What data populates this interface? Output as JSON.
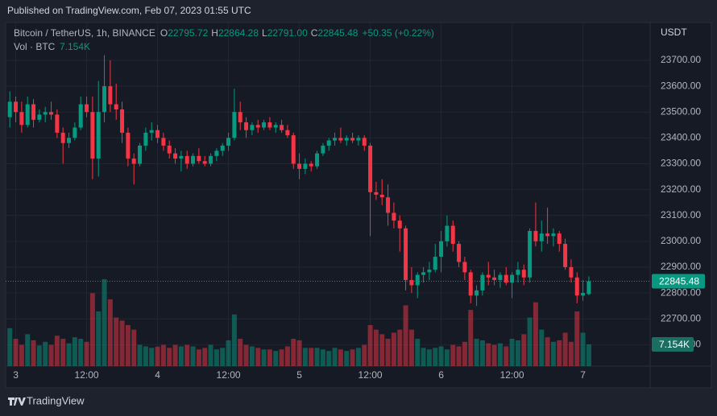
{
  "page": {
    "published": "Published on TradingView.com, Feb 07, 2023 01:55 UTC",
    "footer": "TradingView"
  },
  "chart_data": {
    "type": "candlestick",
    "symbol": "Bitcoin / TetherUS, 1h, BINANCE",
    "ohlc_names": [
      "O",
      "H",
      "L",
      "C"
    ],
    "ohlc_labels": [
      "22795.72",
      "22864.28",
      "22791.00",
      "22845.48"
    ],
    "change": "+50.35 (+0.22%)",
    "volume_title": "Vol · BTC",
    "volume_label": "7.154K",
    "currency": "USDT",
    "up_color": "#089981",
    "down_color": "#f23645",
    "grid": true,
    "ylim": [
      22517,
      23840
    ],
    "yticks": [
      {
        "value": 23700,
        "label": "23700.00"
      },
      {
        "value": 23600,
        "label": "23600.00"
      },
      {
        "value": 23500,
        "label": "23500.00"
      },
      {
        "value": 23400,
        "label": "23400.00"
      },
      {
        "value": 23300,
        "label": "23300.00"
      },
      {
        "value": 23200,
        "label": "23200.00"
      },
      {
        "value": 23100,
        "label": "23100.00"
      },
      {
        "value": 23000,
        "label": "23000.00"
      },
      {
        "value": 22900,
        "label": "22900.00"
      },
      {
        "value": 22800,
        "label": "22800.00"
      },
      {
        "value": 22700,
        "label": "22700.00"
      },
      {
        "value": 22600,
        "label": "22600.00"
      }
    ],
    "xlim": [
      -0.3,
      108.1
    ],
    "xticks": [
      {
        "value": 1,
        "label": "3"
      },
      {
        "value": 13,
        "label": "12:00"
      },
      {
        "value": 25,
        "label": "4"
      },
      {
        "value": 37,
        "label": "12:00"
      },
      {
        "value": 49,
        "label": "5"
      },
      {
        "value": 61,
        "label": "12:00"
      },
      {
        "value": 73,
        "label": "6"
      },
      {
        "value": 85,
        "label": "12:00"
      },
      {
        "value": 97,
        "label": "7"
      }
    ],
    "ohlc": [
      [
        23480,
        23580,
        23440,
        23540
      ],
      [
        23540,
        23560,
        23460,
        23500
      ],
      [
        23500,
        23540,
        23420,
        23450
      ],
      [
        23450,
        23560,
        23440,
        23530
      ],
      [
        23530,
        23550,
        23440,
        23470
      ],
      [
        23470,
        23510,
        23460,
        23490
      ],
      [
        23490,
        23520,
        23460,
        23500
      ],
      [
        23500,
        23540,
        23470,
        23490
      ],
      [
        23490,
        23510,
        23400,
        23420
      ],
      [
        23420,
        23440,
        23300,
        23380
      ],
      [
        23380,
        23420,
        23360,
        23400
      ],
      [
        23400,
        23460,
        23390,
        23440
      ],
      [
        23440,
        23560,
        23430,
        23530
      ],
      [
        23530,
        23560,
        23480,
        23500
      ],
      [
        23500,
        23560,
        23240,
        23320
      ],
      [
        23320,
        23620,
        23250,
        23500
      ],
      [
        23500,
        23720,
        23460,
        23600
      ],
      [
        23600,
        23700,
        23500,
        23530
      ],
      [
        23530,
        23610,
        23470,
        23510
      ],
      [
        23510,
        23540,
        23380,
        23420
      ],
      [
        23420,
        23440,
        23290,
        23320
      ],
      [
        23320,
        23340,
        23220,
        23300
      ],
      [
        23300,
        23380,
        23290,
        23370
      ],
      [
        23370,
        23440,
        23350,
        23420
      ],
      [
        23420,
        23460,
        23390,
        23430
      ],
      [
        23430,
        23450,
        23380,
        23400
      ],
      [
        23400,
        23420,
        23350,
        23370
      ],
      [
        23370,
        23390,
        23320,
        23340
      ],
      [
        23340,
        23360,
        23300,
        23320
      ],
      [
        23320,
        23350,
        23270,
        23330
      ],
      [
        23330,
        23350,
        23280,
        23300
      ],
      [
        23300,
        23340,
        23290,
        23330
      ],
      [
        23330,
        23360,
        23300,
        23310
      ],
      [
        23310,
        23330,
        23290,
        23300
      ],
      [
        23300,
        23340,
        23290,
        23330
      ],
      [
        23330,
        23360,
        23310,
        23350
      ],
      [
        23350,
        23380,
        23330,
        23370
      ],
      [
        23370,
        23420,
        23350,
        23400
      ],
      [
        23400,
        23590,
        23390,
        23500
      ],
      [
        23500,
        23540,
        23430,
        23460
      ],
      [
        23460,
        23480,
        23400,
        23430
      ],
      [
        23430,
        23460,
        23410,
        23450
      ],
      [
        23450,
        23470,
        23420,
        23440
      ],
      [
        23440,
        23470,
        23430,
        23460
      ],
      [
        23460,
        23480,
        23430,
        23440
      ],
      [
        23440,
        23460,
        23420,
        23450
      ],
      [
        23450,
        23470,
        23420,
        23430
      ],
      [
        23430,
        23450,
        23400,
        23410
      ],
      [
        23410,
        23420,
        23280,
        23300
      ],
      [
        23300,
        23340,
        23240,
        23280
      ],
      [
        23280,
        23320,
        23260,
        23300
      ],
      [
        23300,
        23310,
        23270,
        23290
      ],
      [
        23290,
        23350,
        23280,
        23340
      ],
      [
        23340,
        23380,
        23330,
        23370
      ],
      [
        23370,
        23400,
        23350,
        23390
      ],
      [
        23390,
        23420,
        23370,
        23400
      ],
      [
        23400,
        23440,
        23380,
        23390
      ],
      [
        23390,
        23410,
        23370,
        23400
      ],
      [
        23400,
        23420,
        23380,
        23390
      ],
      [
        23390,
        23410,
        23370,
        23400
      ],
      [
        23400,
        23410,
        23350,
        23370
      ],
      [
        23370,
        23380,
        23020,
        23190
      ],
      [
        23190,
        23230,
        23160,
        23180
      ],
      [
        23180,
        23240,
        23140,
        23170
      ],
      [
        23170,
        23220,
        23060,
        23110
      ],
      [
        23110,
        23150,
        23050,
        23080
      ],
      [
        23080,
        23100,
        22960,
        23050
      ],
      [
        23050,
        23060,
        22810,
        22850
      ],
      [
        22850,
        22900,
        22800,
        22830
      ],
      [
        22830,
        22880,
        22780,
        22870
      ],
      [
        22870,
        22900,
        22840,
        22880
      ],
      [
        22880,
        22920,
        22850,
        22890
      ],
      [
        22890,
        22990,
        22880,
        22940
      ],
      [
        22940,
        23040,
        22880,
        23000
      ],
      [
        23000,
        23100,
        22980,
        23060
      ],
      [
        23060,
        23080,
        22960,
        22990
      ],
      [
        22990,
        23000,
        22900,
        22920
      ],
      [
        22920,
        22940,
        22850,
        22880
      ],
      [
        22880,
        22890,
        22760,
        22790
      ],
      [
        22790,
        22830,
        22750,
        22810
      ],
      [
        22810,
        22880,
        22790,
        22870
      ],
      [
        22870,
        22920,
        22830,
        22860
      ],
      [
        22860,
        22890,
        22830,
        22850
      ],
      [
        22850,
        22880,
        22820,
        22870
      ],
      [
        22870,
        22900,
        22830,
        22840
      ],
      [
        22840,
        22880,
        22780,
        22870
      ],
      [
        22870,
        22920,
        22840,
        22890
      ],
      [
        22890,
        22910,
        22830,
        22860
      ],
      [
        22860,
        23050,
        22840,
        23040
      ],
      [
        23040,
        23150,
        22980,
        23000
      ],
      [
        23000,
        23080,
        22960,
        23030
      ],
      [
        23030,
        23130,
        22990,
        23020
      ],
      [
        23020,
        23050,
        22980,
        23030
      ],
      [
        23030,
        23040,
        22960,
        22990
      ],
      [
        22990,
        23010,
        22890,
        22900
      ],
      [
        22900,
        22930,
        22840,
        22860
      ],
      [
        22860,
        22880,
        22760,
        22790
      ],
      [
        22790,
        22850,
        22770,
        22800
      ],
      [
        22795.72,
        22864.28,
        22791,
        22845.48
      ]
    ],
    "volume": [
      12500,
      9000,
      7000,
      10500,
      8500,
      6800,
      8000,
      7000,
      10000,
      9000,
      7500,
      9500,
      9000,
      8000,
      24000,
      18000,
      28600,
      22000,
      16000,
      15000,
      13500,
      12000,
      7000,
      6500,
      6000,
      6400,
      7000,
      6000,
      7000,
      6500,
      7000,
      6500,
      5500,
      6000,
      7000,
      5500,
      6000,
      8500,
      17000,
      9000,
      7000,
      6500,
      6000,
      5500,
      5500,
      5000,
      5500,
      6500,
      9000,
      8500,
      6000,
      6000,
      6000,
      5500,
      5000,
      6000,
      5500,
      5000,
      5500,
      6000,
      7000,
      13500,
      12000,
      10500,
      9000,
      11000,
      12000,
      20000,
      12000,
      9000,
      6000,
      5500,
      6000,
      6500,
      5500,
      7000,
      6500,
      8000,
      18500,
      9000,
      8500,
      7500,
      7000,
      7500,
      6500,
      9000,
      8500,
      10500,
      16000,
      21000,
      12000,
      9500,
      8000,
      8500,
      11000,
      8000,
      18000,
      11000,
      7154
    ]
  }
}
